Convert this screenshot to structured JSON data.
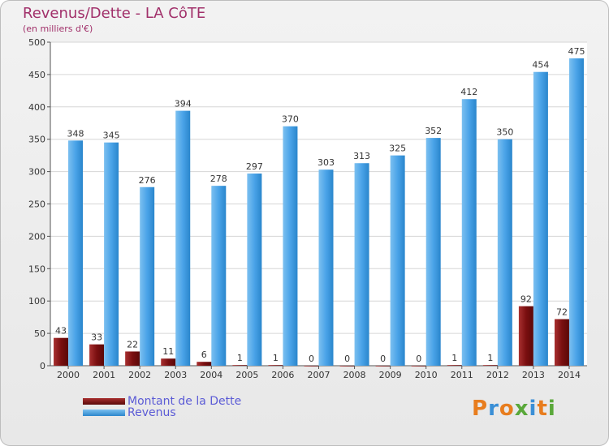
{
  "header": {
    "title": "Revenus/Dette - LA CôTE",
    "subtitle": "(en milliers d'€)"
  },
  "legend": {
    "debt_label": "Montant de la Dette",
    "revenue_label": "Revenus"
  },
  "logo": {
    "text": "Proxiti"
  },
  "colors": {
    "debt": "#7a0f10",
    "revenue": "#4aa3e8",
    "title": "#a1306a",
    "legend_text": "#5b5bd6"
  },
  "chart_data": {
    "type": "bar",
    "categories": [
      "2000",
      "2001",
      "2002",
      "2003",
      "2004",
      "2005",
      "2006",
      "2007",
      "2008",
      "2009",
      "2010",
      "2011",
      "2012",
      "2013",
      "2014"
    ],
    "series": [
      {
        "name": "Montant de la Dette",
        "values": [
          43,
          33,
          22,
          11,
          6,
          1,
          1,
          0,
          0,
          0,
          0,
          1,
          1,
          92,
          72
        ]
      },
      {
        "name": "Revenus",
        "values": [
          348,
          345,
          276,
          394,
          278,
          297,
          370,
          303,
          313,
          325,
          352,
          412,
          350,
          454,
          475
        ]
      }
    ],
    "ylim": [
      0,
      500
    ],
    "yticks": [
      0,
      50,
      100,
      150,
      200,
      250,
      300,
      350,
      400,
      450,
      500
    ],
    "grid": true,
    "legend_position": "bottom-left"
  }
}
